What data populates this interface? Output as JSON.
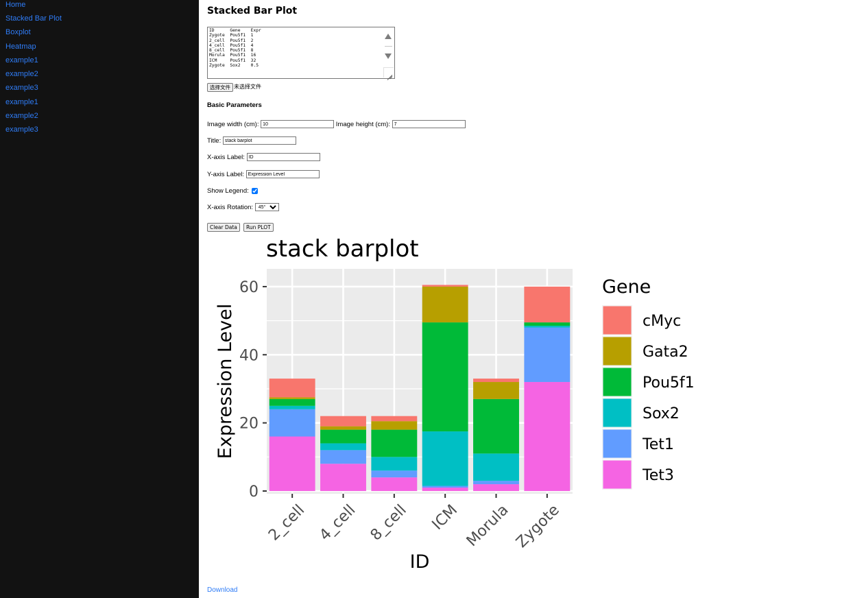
{
  "sidebar": {
    "items": [
      {
        "label": "Home"
      },
      {
        "label": "Stacked Bar Plot"
      },
      {
        "label": "Boxplot"
      },
      {
        "label": "Heatmap"
      },
      {
        "label": "example1"
      },
      {
        "label": "example2"
      },
      {
        "label": "example3"
      },
      {
        "label": "example1"
      },
      {
        "label": "example2"
      },
      {
        "label": "example3"
      }
    ]
  },
  "page": {
    "title": "Stacked Bar Plot",
    "data_input": "ID      Gene    Expr\nZygote  Pou5f1  1\n2_cell  Pou5f1  2\n4_cell  Pou5f1  4\n8_cell  Pou5f1  8\nMorula  Pou5f1  16\nICM     Pou5f1  32\nZygote  Sox2    0.5",
    "file_button": "选择文件",
    "file_status": "未选择文件",
    "params_heading": "Basic Parameters",
    "width_label": "Image width (cm):",
    "width_value": "10",
    "height_label": "Image height (cm):",
    "height_value": "7",
    "title_label": "Title:",
    "title_value": "stack barplot",
    "xlabel_label": "X-axis Label:",
    "xlabel_value": "ID",
    "ylabel_label": "Y-axis Label:",
    "ylabel_value": "Expression Level",
    "legend_label": "Show Legend:",
    "legend_checked": true,
    "rotation_label": "X-axis Rotation:",
    "rotation_value": "45°",
    "clear_button": "Clear Data",
    "run_button": "Run PLOT",
    "download_label": "Download"
  },
  "chart_data": {
    "type": "bar",
    "stacked": true,
    "title": "stack barplot",
    "xlabel": "ID",
    "ylabel": "Expression Level",
    "ylim": [
      0,
      62
    ],
    "yticks": [
      0,
      20,
      40,
      60
    ],
    "x_tick_rotation": 45,
    "grid": true,
    "legend": {
      "title": "Gene",
      "position": "right"
    },
    "categories": [
      "2_cell",
      "4_cell",
      "8_cell",
      "ICM",
      "Morula",
      "Zygote"
    ],
    "series": [
      {
        "name": "Tet3",
        "color": "#F564E3",
        "values": [
          16,
          8,
          4,
          1,
          2,
          32
        ]
      },
      {
        "name": "Tet1",
        "color": "#619CFF",
        "values": [
          8,
          4,
          2,
          0.5,
          1,
          16
        ]
      },
      {
        "name": "Sox2",
        "color": "#00BFC4",
        "values": [
          1,
          2,
          4,
          16,
          8,
          0.5
        ]
      },
      {
        "name": "Pou5f1",
        "color": "#00BA38",
        "values": [
          2,
          4,
          8,
          32,
          16,
          1
        ]
      },
      {
        "name": "Gata2",
        "color": "#B79F00",
        "values": [
          0.5,
          1,
          2.5,
          10.5,
          5,
          0
        ]
      },
      {
        "name": "cMyc",
        "color": "#F8766D",
        "values": [
          5.5,
          3,
          1.5,
          0.5,
          1,
          10.5
        ]
      }
    ],
    "legend_order": [
      "cMyc",
      "Gata2",
      "Pou5f1",
      "Sox2",
      "Tet1",
      "Tet3"
    ]
  }
}
